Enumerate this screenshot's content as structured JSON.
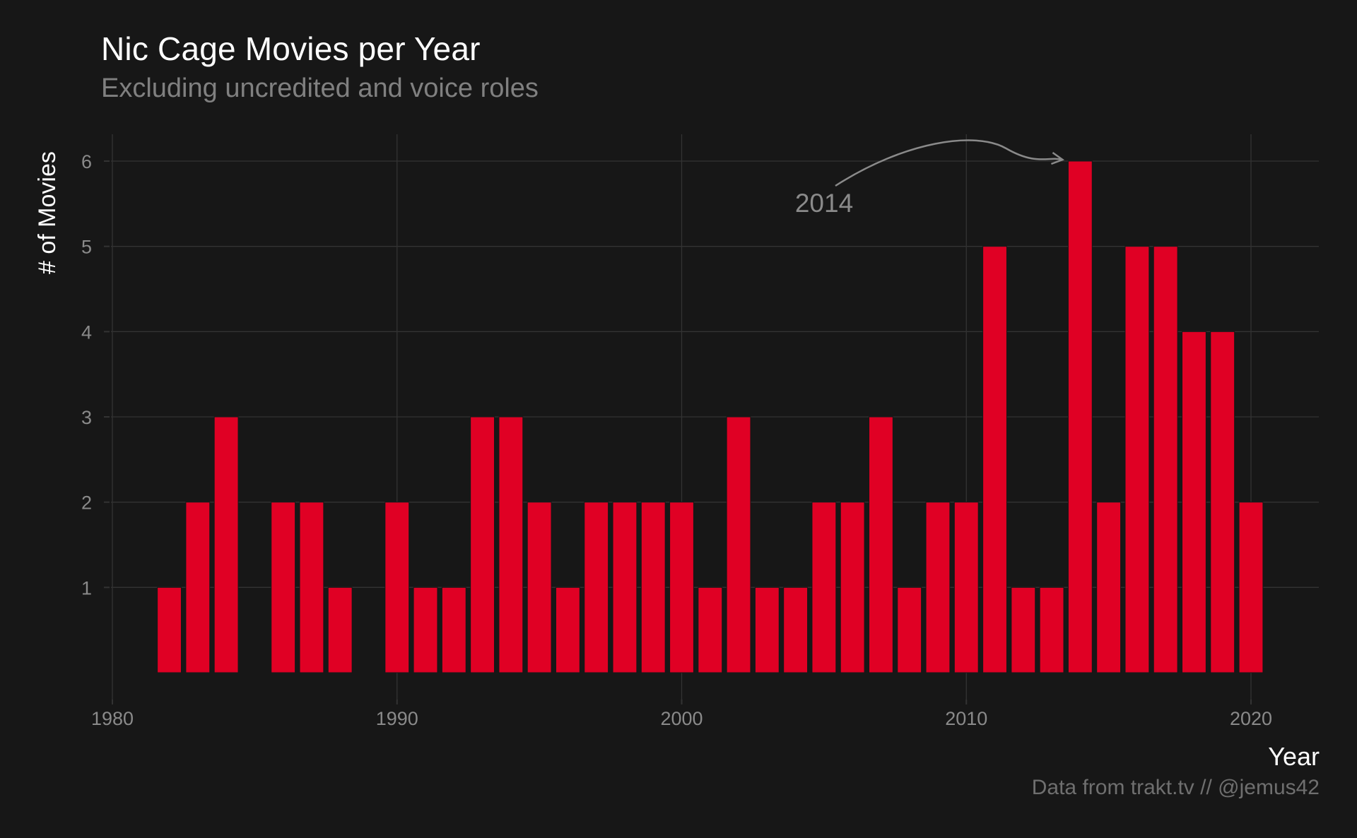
{
  "chart_data": {
    "type": "bar",
    "title": "Nic Cage Movies per Year",
    "subtitle": "Excluding uncredited and voice roles",
    "xlabel": "Year",
    "ylabel": "# of Movies",
    "caption": "Data from trakt.tv // @jemus42",
    "x": [
      1982,
      1983,
      1984,
      1985,
      1986,
      1987,
      1988,
      1989,
      1990,
      1991,
      1992,
      1993,
      1994,
      1995,
      1996,
      1997,
      1998,
      1999,
      2000,
      2001,
      2002,
      2003,
      2004,
      2005,
      2006,
      2007,
      2008,
      2009,
      2010,
      2011,
      2012,
      2013,
      2014,
      2015,
      2016,
      2017,
      2018,
      2019,
      2020
    ],
    "values": [
      1,
      2,
      3,
      0,
      2,
      2,
      1,
      0,
      2,
      1,
      1,
      3,
      3,
      2,
      1,
      2,
      2,
      2,
      2,
      1,
      3,
      1,
      1,
      2,
      2,
      3,
      1,
      2,
      2,
      5,
      1,
      1,
      6,
      2,
      5,
      5,
      4,
      4,
      2
    ],
    "xlim": [
      1979.3,
      2022.5
    ],
    "ylim": [
      -0.2,
      6.3
    ],
    "x_ticks": [
      1980,
      1990,
      2000,
      2010,
      2020
    ],
    "y_ticks": [
      1,
      2,
      3,
      4,
      5,
      6
    ],
    "grid": true,
    "bar_color": "#e00024",
    "background": "#171717",
    "annotation": {
      "text": "2014",
      "target_x": 2014,
      "target_y": 6
    }
  }
}
